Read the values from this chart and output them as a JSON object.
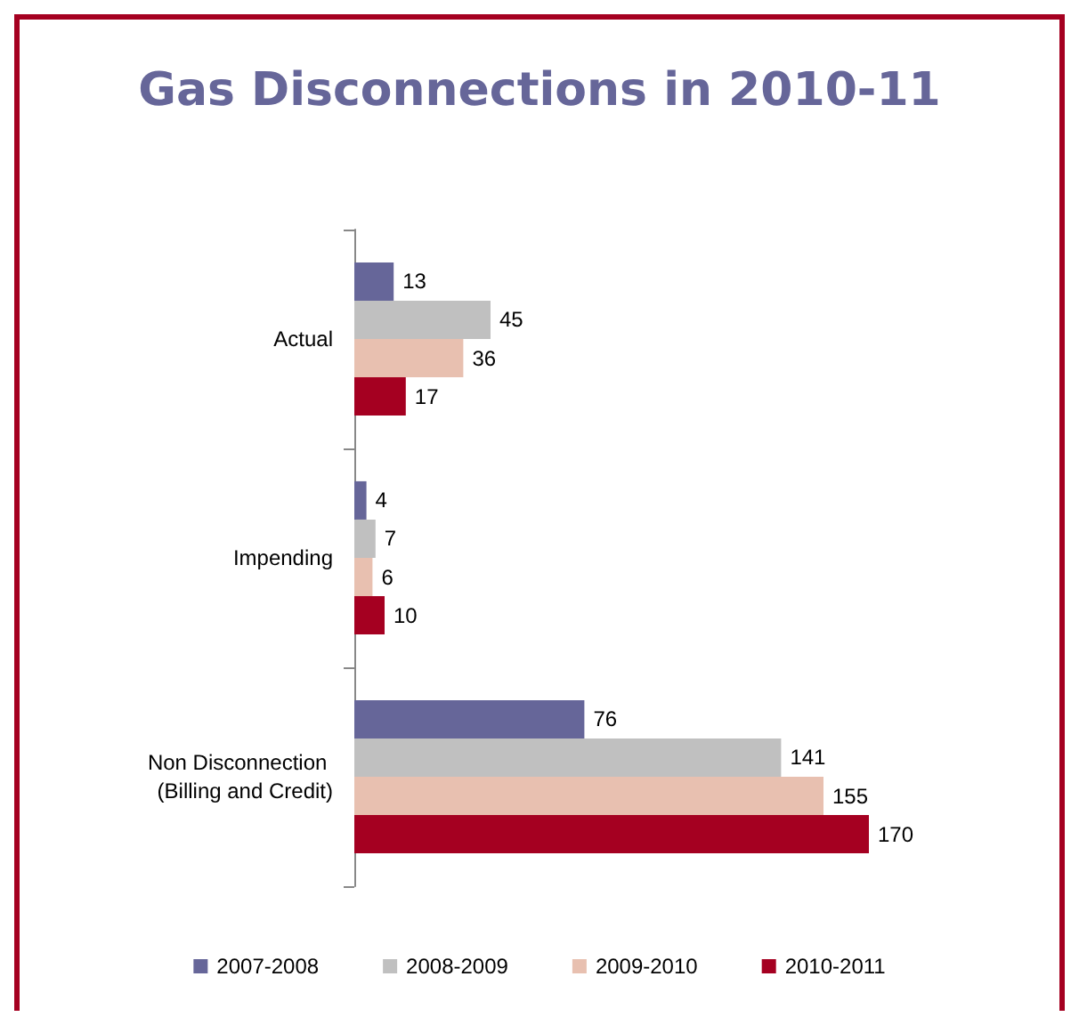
{
  "chart_data": {
    "type": "bar",
    "orientation": "horizontal",
    "title": "Gas Disconnections in 2010-11",
    "categories": [
      "Actual",
      "Impending",
      "Non Disconnection (Billing and Credit)"
    ],
    "series": [
      {
        "name": "2007-2008",
        "color": "#666699",
        "values": [
          13,
          4,
          76
        ]
      },
      {
        "name": "2008-2009",
        "color": "#c0c0c0",
        "values": [
          45,
          7,
          141
        ]
      },
      {
        "name": "2009-2010",
        "color": "#e8c0b0",
        "values": [
          36,
          6,
          155
        ]
      },
      {
        "name": "2010-2011",
        "color": "#a50021",
        "values": [
          17,
          10,
          170
        ]
      }
    ],
    "data_labels": true,
    "legend": "bottom",
    "tick_labels": "y"
  }
}
